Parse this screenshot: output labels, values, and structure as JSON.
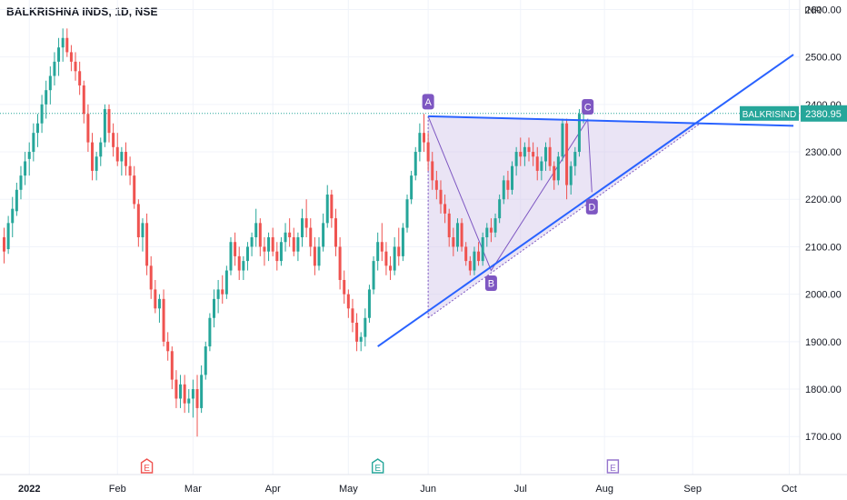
{
  "header": {
    "title": "BALKRISHNA INDS, 1D, NSE",
    "currency": "INR"
  },
  "colors": {
    "up": "#26a69a",
    "down": "#ef5350",
    "trend": "#2962ff",
    "pattern": "#7e57c2",
    "pattern_fill": "#d1c4e9",
    "price_tag": "#26a69a",
    "event_earn_red": "#ef5350",
    "event_earn_green": "#26a69a",
    "event_other": "#9575cd"
  },
  "price_tag": {
    "symbol": "BALKRISIND",
    "value": "2380.95",
    "price": 2380.95
  },
  "chart_data": {
    "type": "candlestick",
    "ylim": [
      1620,
      2620
    ],
    "y_ticks": [
      {
        "value": 1700,
        "label": "1700.00"
      },
      {
        "value": 1800,
        "label": "1800.00"
      },
      {
        "value": 1900,
        "label": "1900.00"
      },
      {
        "value": 2000,
        "label": "2000.00"
      },
      {
        "value": 2100,
        "label": "2100.00"
      },
      {
        "value": 2200,
        "label": "2200.00"
      },
      {
        "value": 2300,
        "label": "2300.00"
      },
      {
        "value": 2400,
        "label": "2400.00"
      },
      {
        "value": 2500,
        "label": "2500.00"
      },
      {
        "value": 2600,
        "label": "2600.00"
      }
    ],
    "x_ticks": [
      {
        "label": "2022",
        "bold": true,
        "index": 6
      },
      {
        "label": "Feb",
        "index": 27
      },
      {
        "label": "Mar",
        "index": 45
      },
      {
        "label": "Apr",
        "index": 64
      },
      {
        "label": "May",
        "index": 82
      },
      {
        "label": "Jun",
        "index": 101
      },
      {
        "label": "Jul",
        "index": 123
      },
      {
        "label": "Aug",
        "index": 143
      },
      {
        "label": "Sep",
        "index": 164
      },
      {
        "label": "Oct",
        "index": 187
      }
    ],
    "patterns": [
      {
        "label": "A",
        "index": 101,
        "price": 2375
      },
      {
        "label": "B",
        "index": 116,
        "price": 2050
      },
      {
        "label": "C",
        "index": 139,
        "price": 2368
      },
      {
        "label": "D",
        "index": 140,
        "price": 2215
      }
    ],
    "events": [
      {
        "type": "earnings-red",
        "label": "E",
        "index": 34
      },
      {
        "type": "earnings-green",
        "label": "E",
        "index": 89
      },
      {
        "type": "other",
        "label": "E",
        "index": 145
      }
    ],
    "trendlines": [
      {
        "from": [
          89,
          1890
        ],
        "to": [
          188,
          2505
        ]
      },
      {
        "from": [
          101,
          2375
        ],
        "to": [
          188,
          2355
        ]
      }
    ],
    "candles": [
      [
        2120,
        2140,
        2065,
        2090
      ],
      [
        2095,
        2165,
        2085,
        2150
      ],
      [
        2150,
        2205,
        2120,
        2180
      ],
      [
        2175,
        2235,
        2165,
        2220
      ],
      [
        2220,
        2270,
        2200,
        2250
      ],
      [
        2250,
        2300,
        2230,
        2280
      ],
      [
        2285,
        2320,
        2250,
        2300
      ],
      [
        2300,
        2360,
        2280,
        2340
      ],
      [
        2340,
        2380,
        2310,
        2360
      ],
      [
        2360,
        2420,
        2340,
        2400
      ],
      [
        2400,
        2450,
        2370,
        2430
      ],
      [
        2430,
        2480,
        2400,
        2460
      ],
      [
        2460,
        2510,
        2440,
        2490
      ],
      [
        2490,
        2540,
        2460,
        2520
      ],
      [
        2520,
        2560,
        2490,
        2540
      ],
      [
        2540,
        2560,
        2500,
        2510
      ],
      [
        2510,
        2525,
        2470,
        2490
      ],
      [
        2490,
        2510,
        2450,
        2470
      ],
      [
        2470,
        2490,
        2420,
        2440
      ],
      [
        2440,
        2450,
        2360,
        2380
      ],
      [
        2380,
        2400,
        2300,
        2320
      ],
      [
        2320,
        2340,
        2240,
        2260
      ],
      [
        2260,
        2300,
        2240,
        2290
      ],
      [
        2290,
        2330,
        2270,
        2320
      ],
      [
        2320,
        2400,
        2310,
        2390
      ],
      [
        2390,
        2400,
        2320,
        2340
      ],
      [
        2340,
        2360,
        2290,
        2310
      ],
      [
        2310,
        2340,
        2270,
        2280
      ],
      [
        2280,
        2310,
        2250,
        2300
      ],
      [
        2300,
        2320,
        2250,
        2270
      ],
      [
        2270,
        2290,
        2230,
        2250
      ],
      [
        2250,
        2270,
        2180,
        2190
      ],
      [
        2190,
        2200,
        2100,
        2120
      ],
      [
        2120,
        2160,
        2090,
        2150
      ],
      [
        2150,
        2170,
        2040,
        2060
      ],
      [
        2060,
        2080,
        1990,
        2010
      ],
      [
        2010,
        2030,
        1960,
        1970
      ],
      [
        1970,
        2000,
        1940,
        1990
      ],
      [
        1990,
        2010,
        1890,
        1900
      ],
      [
        1900,
        1920,
        1860,
        1880
      ],
      [
        1880,
        1890,
        1800,
        1820
      ],
      [
        1820,
        1840,
        1760,
        1780
      ],
      [
        1780,
        1830,
        1760,
        1810
      ],
      [
        1810,
        1830,
        1750,
        1770
      ],
      [
        1770,
        1800,
        1750,
        1780
      ],
      [
        1780,
        1820,
        1740,
        1800
      ],
      [
        1800,
        1830,
        1700,
        1760
      ],
      [
        1760,
        1850,
        1750,
        1830
      ],
      [
        1830,
        1900,
        1820,
        1890
      ],
      [
        1890,
        1960,
        1880,
        1950
      ],
      [
        1950,
        2010,
        1930,
        1990
      ],
      [
        1990,
        2030,
        1960,
        2010
      ],
      [
        2010,
        2040,
        1980,
        2000
      ],
      [
        2000,
        2060,
        1990,
        2050
      ],
      [
        2050,
        2120,
        2040,
        2110
      ],
      [
        2110,
        2130,
        2060,
        2080
      ],
      [
        2080,
        2100,
        2030,
        2050
      ],
      [
        2050,
        2080,
        2030,
        2070
      ],
      [
        2070,
        2110,
        2050,
        2100
      ],
      [
        2100,
        2130,
        2080,
        2120
      ],
      [
        2120,
        2180,
        2100,
        2150
      ],
      [
        2150,
        2160,
        2080,
        2100
      ],
      [
        2100,
        2120,
        2060,
        2090
      ],
      [
        2090,
        2130,
        2070,
        2120
      ],
      [
        2120,
        2140,
        2080,
        2090
      ],
      [
        2090,
        2110,
        2050,
        2070
      ],
      [
        2070,
        2120,
        2060,
        2110
      ],
      [
        2110,
        2150,
        2090,
        2130
      ],
      [
        2130,
        2160,
        2100,
        2120
      ],
      [
        2120,
        2140,
        2080,
        2090
      ],
      [
        2090,
        2130,
        2070,
        2120
      ],
      [
        2120,
        2180,
        2100,
        2160
      ],
      [
        2160,
        2200,
        2120,
        2140
      ],
      [
        2140,
        2160,
        2080,
        2100
      ],
      [
        2100,
        2120,
        2040,
        2060
      ],
      [
        2060,
        2120,
        2050,
        2100
      ],
      [
        2100,
        2170,
        2090,
        2150
      ],
      [
        2150,
        2230,
        2140,
        2210
      ],
      [
        2210,
        2220,
        2140,
        2160
      ],
      [
        2160,
        2180,
        2080,
        2100
      ],
      [
        2100,
        2120,
        2010,
        2030
      ],
      [
        2030,
        2050,
        1980,
        2000
      ],
      [
        2000,
        2010,
        1950,
        1970
      ],
      [
        1970,
        1990,
        1920,
        1940
      ],
      [
        1940,
        1960,
        1880,
        1900
      ],
      [
        1900,
        1920,
        1880,
        1910
      ],
      [
        1910,
        1970,
        1890,
        1950
      ],
      [
        1950,
        2020,
        1940,
        2010
      ],
      [
        2010,
        2080,
        2000,
        2070
      ],
      [
        2070,
        2130,
        2050,
        2110
      ],
      [
        2110,
        2150,
        2070,
        2090
      ],
      [
        2090,
        2110,
        2040,
        2060
      ],
      [
        2060,
        2080,
        2030,
        2050
      ],
      [
        2050,
        2120,
        2040,
        2100
      ],
      [
        2100,
        2140,
        2060,
        2080
      ],
      [
        2080,
        2150,
        2070,
        2140
      ],
      [
        2140,
        2210,
        2130,
        2200
      ],
      [
        2200,
        2260,
        2190,
        2250
      ],
      [
        2250,
        2310,
        2240,
        2300
      ],
      [
        2300,
        2360,
        2280,
        2340
      ],
      [
        2340,
        2380,
        2300,
        2320
      ],
      [
        2320,
        2340,
        2260,
        2280
      ],
      [
        2280,
        2300,
        2220,
        2240
      ],
      [
        2240,
        2260,
        2200,
        2220
      ],
      [
        2220,
        2240,
        2170,
        2190
      ],
      [
        2190,
        2210,
        2150,
        2170
      ],
      [
        2170,
        2180,
        2100,
        2120
      ],
      [
        2120,
        2140,
        2080,
        2100
      ],
      [
        2100,
        2160,
        2090,
        2150
      ],
      [
        2150,
        2160,
        2090,
        2100
      ],
      [
        2100,
        2110,
        2060,
        2070
      ],
      [
        2070,
        2080,
        2040,
        2050
      ],
      [
        2050,
        2100,
        2040,
        2090
      ],
      [
        2090,
        2110,
        2060,
        2070
      ],
      [
        2070,
        2130,
        2060,
        2120
      ],
      [
        2120,
        2150,
        2100,
        2140
      ],
      [
        2140,
        2160,
        2110,
        2130
      ],
      [
        2130,
        2170,
        2120,
        2160
      ],
      [
        2160,
        2210,
        2150,
        2200
      ],
      [
        2200,
        2250,
        2190,
        2240
      ],
      [
        2240,
        2260,
        2200,
        2220
      ],
      [
        2220,
        2280,
        2210,
        2270
      ],
      [
        2270,
        2310,
        2250,
        2300
      ],
      [
        2300,
        2330,
        2270,
        2290
      ],
      [
        2290,
        2320,
        2270,
        2310
      ],
      [
        2310,
        2330,
        2280,
        2300
      ],
      [
        2300,
        2320,
        2270,
        2290
      ],
      [
        2290,
        2310,
        2240,
        2260
      ],
      [
        2260,
        2290,
        2240,
        2280
      ],
      [
        2280,
        2320,
        2260,
        2310
      ],
      [
        2310,
        2330,
        2260,
        2270
      ],
      [
        2270,
        2280,
        2220,
        2240
      ],
      [
        2240,
        2300,
        2230,
        2290
      ],
      [
        2290,
        2370,
        2280,
        2360
      ],
      [
        2360,
        2370,
        2200,
        2230
      ],
      [
        2230,
        2280,
        2210,
        2270
      ],
      [
        2270,
        2310,
        2250,
        2300
      ],
      [
        2300,
        2390,
        2290,
        2380
      ],
      [
        2380,
        2410,
        2360,
        2381
      ]
    ]
  }
}
